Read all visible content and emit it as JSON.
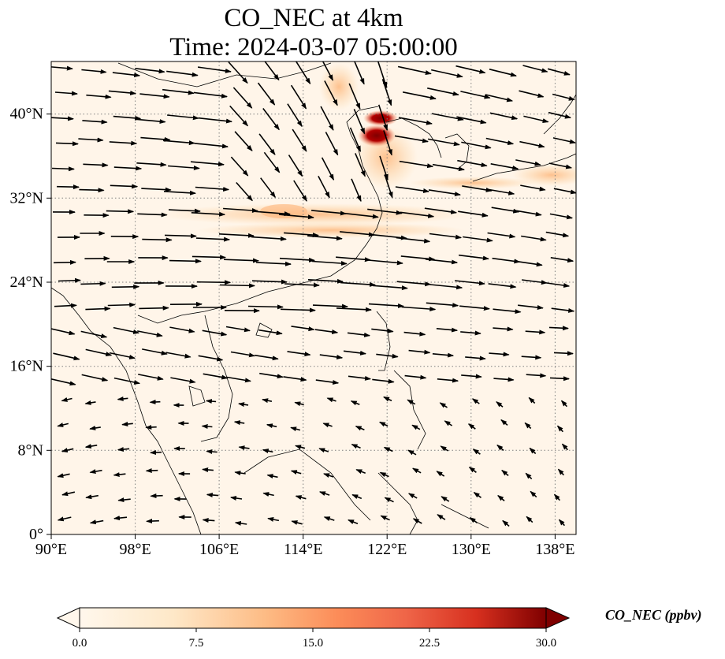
{
  "title": "CO_NEC at 4km",
  "subtitle": "Time: 2024-03-07 05:00:00",
  "map": {
    "lon_range": [
      90,
      140
    ],
    "lat_range": [
      0,
      45
    ],
    "lon_ticks": [
      "90°E",
      "98°E",
      "106°E",
      "114°E",
      "122°E",
      "130°E",
      "138°E"
    ],
    "lat_ticks": [
      "0°",
      "8°N",
      "16°N",
      "24°N",
      "32°N",
      "40°N"
    ],
    "gridlines": true,
    "colormap": "OrRd",
    "colors": {
      "low": "#fff7ec",
      "mid": "#fc8d59",
      "high": "#7f0000",
      "coast": "#000000",
      "grid": "#808080"
    }
  },
  "colorbar": {
    "label": "CO_NEC (ppbv)",
    "min": 0.0,
    "max": 30.0,
    "ticks": [
      "0.0",
      "7.5",
      "15.0",
      "22.5",
      "30.0"
    ],
    "extend": "both"
  }
}
